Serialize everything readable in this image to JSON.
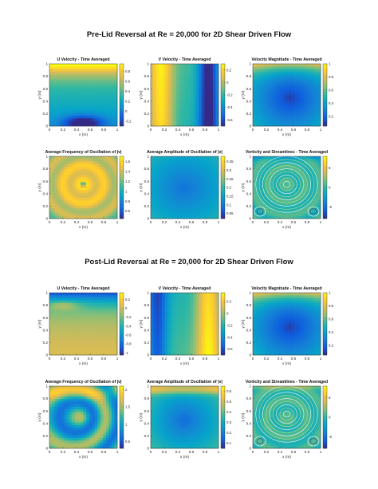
{
  "sections": [
    {
      "title": "Pre-Lid Reversal at Re = 20,000 for 2D Shear Driven Flow",
      "panels": [
        {
          "title": "U Velocity - Time Averaged",
          "xlabel": "x (m)",
          "ylabel": "y (m)",
          "cbar_ticks": [
            "0.8",
            "0.6",
            "0.4",
            "0.2",
            "0",
            "-0.2"
          ],
          "cbar_range": [
            -0.3,
            0.95
          ],
          "field": "u_pre"
        },
        {
          "title": "V Velocity - Time Averaged",
          "xlabel": "x (m)",
          "ylabel": "y (m)",
          "cbar_ticks": [
            "0.2",
            "0",
            "-0.2",
            "-0.4",
            "-0.6"
          ],
          "cbar_range": [
            -0.7,
            0.3
          ],
          "field": "v_pre"
        },
        {
          "title": "Velocity Magnitude - Time Averaged",
          "xlabel": "x (m)",
          "ylabel": "y (m)",
          "cbar_ticks": [
            "1",
            "0.8",
            "0.6",
            "0.4",
            "0.2"
          ],
          "cbar_range": [
            0.05,
            1.0
          ],
          "field": "mag"
        },
        {
          "title": "Average Frequency of Oscillation of |v|",
          "xlabel": "x (m)",
          "ylabel": "y (m)",
          "cbar_ticks": [
            "1.6",
            "1.4",
            "1.2",
            "1",
            "0.8",
            "0.6"
          ],
          "cbar_range": [
            0.45,
            1.7
          ],
          "field": "freq_pre"
        },
        {
          "title": "Average Amplitude of Oscillation of |v|",
          "xlabel": "x (m)",
          "ylabel": "y (m)",
          "cbar_ticks": [
            "0.35",
            "0.3",
            "0.25",
            "0.2",
            "0.15",
            "0.1",
            "0.05"
          ],
          "cbar_range": [
            0.02,
            0.38
          ],
          "field": "amp_pre"
        },
        {
          "title": "Vorticity and Streamlines - Time Averaged",
          "xlabel": "x (m)",
          "ylabel": "y (m)",
          "cbar_ticks": [
            "5",
            "0",
            "-5"
          ],
          "cbar_range": [
            -8,
            8
          ],
          "field": "vort_pre"
        }
      ]
    },
    {
      "title": "Post-Lid Reversal at Re = 20,000 for 2D Shear Driven Flow",
      "panels": [
        {
          "title": "U Velocity - Time Averaged",
          "xlabel": "x (m)",
          "ylabel": "y (m)",
          "cbar_ticks": [
            "0.2",
            "0",
            "-0.2",
            "-0.4",
            "-0.6",
            "-0.8",
            "-1"
          ],
          "cbar_range": [
            -1.05,
            0.35
          ],
          "field": "u_post"
        },
        {
          "title": "V Velocity - Time Averaged",
          "xlabel": "x (m)",
          "ylabel": "y (m)",
          "cbar_ticks": [
            "0.2",
            "0",
            "-0.2",
            "-0.4",
            "-0.6"
          ],
          "cbar_range": [
            -0.7,
            0.35
          ],
          "field": "v_post"
        },
        {
          "title": "Velocity Magnitude - Time Averaged",
          "xlabel": "x (m)",
          "ylabel": "y (m)",
          "cbar_ticks": [
            "1",
            "0.8",
            "0.6",
            "0.4",
            "0.2"
          ],
          "cbar_range": [
            0.05,
            1.0
          ],
          "field": "mag"
        },
        {
          "title": "Average Frequency of Oscillation of |v|",
          "xlabel": "x (m)",
          "ylabel": "y (m)",
          "cbar_ticks": [
            "2",
            "1.5",
            "1",
            "0.5"
          ],
          "cbar_range": [
            0.3,
            2.1
          ],
          "field": "freq_post"
        },
        {
          "title": "Average Amplitude of Oscillation of |v|",
          "xlabel": "x (m)",
          "ylabel": "y (m)",
          "cbar_ticks": [
            "0.6",
            "0.5",
            "0.4",
            "0.3",
            "0.2",
            "0.1"
          ],
          "cbar_range": [
            0.05,
            0.65
          ],
          "field": "amp_post"
        },
        {
          "title": "Vorticity and Streamlines - Time Averaged",
          "xlabel": "x (m)",
          "ylabel": "y (m)",
          "cbar_ticks": [
            "5",
            "0",
            "-5"
          ],
          "cbar_range": [
            -8,
            8
          ],
          "field": "vort_post"
        }
      ]
    }
  ],
  "chart_data": {
    "type": "heatmap",
    "grid": "2 sections x 2 rows x 3 columns",
    "x_ticks": [
      "0",
      "0.2",
      "0.4",
      "0.6",
      "0.8",
      "1"
    ],
    "y_ticks": [
      "0",
      "0.2",
      "0.4",
      "0.6",
      "0.8",
      "1"
    ],
    "xlim": [
      0,
      1
    ],
    "ylim": [
      0,
      1
    ],
    "colormap": "parula",
    "colormap_stops": [
      "#352a87",
      "#0f5cdd",
      "#1481d6",
      "#06a4ca",
      "#2eb7a4",
      "#87bf77",
      "#d1bb59",
      "#fec832",
      "#f9fb0e"
    ]
  }
}
